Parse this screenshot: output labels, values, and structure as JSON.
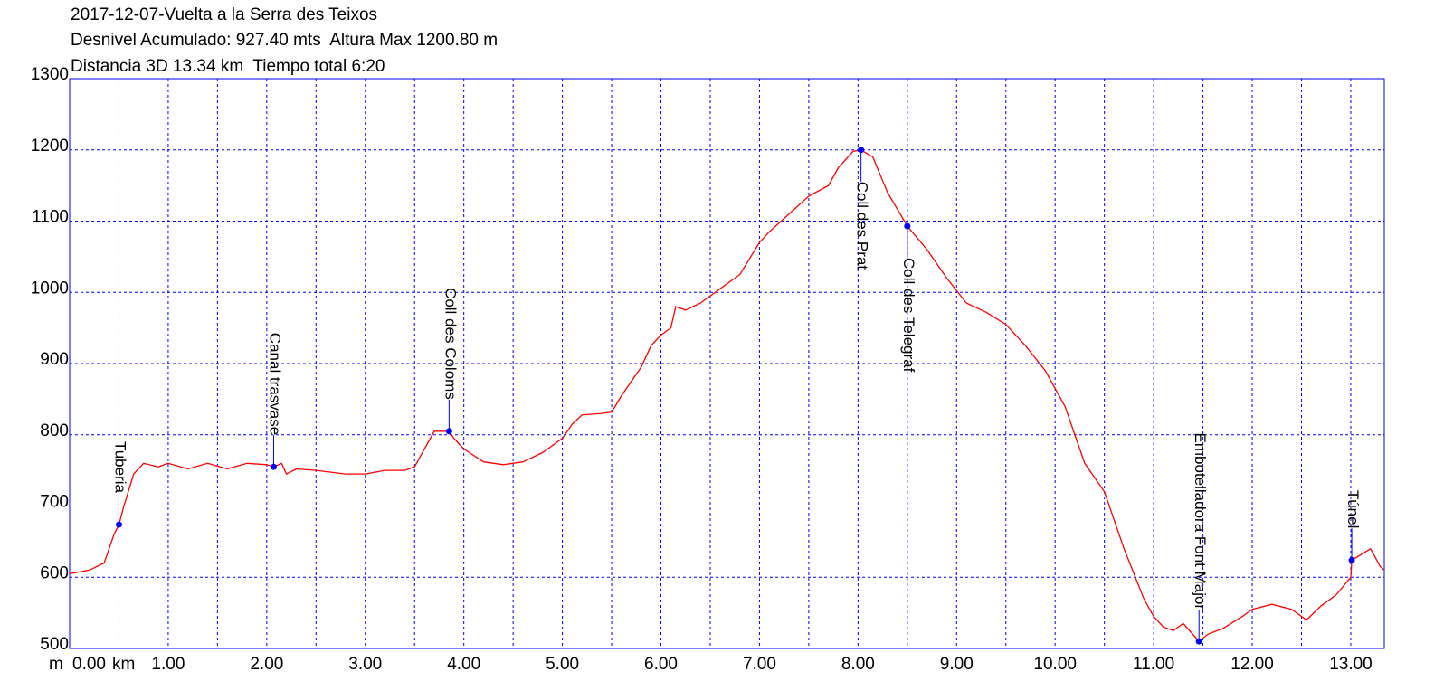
{
  "chart_data": {
    "type": "line",
    "title_lines": [
      "2017-12-07-Vuelta a la Serra des Teixos",
      "Desnivel Acumulado: 927.40 mts  Altura Max 1200.80 m",
      "Distancia 3D 13.34 km  Tiempo total 6:20"
    ],
    "y_unit": "m",
    "x_unit": "km",
    "color": "#ff0000",
    "grid_color": "#0000ff",
    "xlim": [
      0,
      13.34
    ],
    "ylim": [
      500,
      1300
    ],
    "yticks": [
      500,
      600,
      700,
      800,
      900,
      1000,
      1100,
      1200,
      1300
    ],
    "xticks": [
      {
        "value": 0,
        "label": "0.00"
      },
      {
        "value": 1,
        "label": "1.00"
      },
      {
        "value": 2,
        "label": "2.00"
      },
      {
        "value": 3,
        "label": "3.00"
      },
      {
        "value": 4,
        "label": "4.00"
      },
      {
        "value": 5,
        "label": "5.00"
      },
      {
        "value": 6,
        "label": "6.00"
      },
      {
        "value": 7,
        "label": "7.00"
      },
      {
        "value": 8,
        "label": "8.00"
      },
      {
        "value": 9,
        "label": "9.00"
      },
      {
        "value": 10,
        "label": "10.00"
      },
      {
        "value": 11,
        "label": "11.00"
      },
      {
        "value": 12,
        "label": "12.00"
      },
      {
        "value": 13,
        "label": "13.00"
      }
    ],
    "xgrid": [
      0.5,
      1,
      1.5,
      2,
      2.5,
      3,
      3.5,
      4,
      4.5,
      5,
      5.5,
      6,
      6.5,
      7,
      7.5,
      8,
      8.5,
      9,
      9.5,
      10,
      10.5,
      11,
      11.5,
      12,
      12.5,
      13
    ],
    "grid": true,
    "x": [
      0,
      0.2,
      0.35,
      0.45,
      0.5,
      0.55,
      0.65,
      0.75,
      0.9,
      1.0,
      1.2,
      1.4,
      1.6,
      1.8,
      2.0,
      2.07,
      2.15,
      2.2,
      2.3,
      2.5,
      2.8,
      3.0,
      3.2,
      3.4,
      3.5,
      3.6,
      3.7,
      3.85,
      3.9,
      4.0,
      4.2,
      4.4,
      4.6,
      4.8,
      5.0,
      5.1,
      5.2,
      5.4,
      5.5,
      5.6,
      5.8,
      5.9,
      6.0,
      6.1,
      6.15,
      6.25,
      6.4,
      6.6,
      6.8,
      7.0,
      7.1,
      7.3,
      7.5,
      7.7,
      7.8,
      7.95,
      8.03,
      8.15,
      8.3,
      8.5,
      8.7,
      8.9,
      9.1,
      9.3,
      9.5,
      9.7,
      9.9,
      10.1,
      10.3,
      10.5,
      10.7,
      10.9,
      11.0,
      11.1,
      11.2,
      11.3,
      11.46,
      11.55,
      11.7,
      11.9,
      12.0,
      12.2,
      12.4,
      12.55,
      12.7,
      12.85,
      13.0,
      13.01,
      13.2,
      13.3,
      13.34
    ],
    "values": [
      605,
      610,
      620,
      660,
      674,
      700,
      745,
      760,
      755,
      760,
      752,
      760,
      752,
      760,
      758,
      755,
      760,
      745,
      752,
      750,
      745,
      745,
      750,
      750,
      755,
      780,
      805,
      805,
      795,
      780,
      762,
      758,
      762,
      775,
      795,
      815,
      828,
      830,
      832,
      855,
      895,
      925,
      940,
      950,
      980,
      975,
      985,
      1005,
      1025,
      1070,
      1085,
      1110,
      1135,
      1150,
      1175,
      1198,
      1200,
      1190,
      1140,
      1093,
      1060,
      1020,
      985,
      972,
      955,
      925,
      890,
      840,
      760,
      720,
      640,
      570,
      545,
      530,
      525,
      535,
      510,
      520,
      528,
      545,
      555,
      562,
      555,
      540,
      560,
      575,
      600,
      624,
      640,
      615,
      610
    ],
    "waypoints": [
      {
        "label": "Tuberia",
        "x": 0.5,
        "y": 674,
        "position": "above"
      },
      {
        "label": "Canal trasvase",
        "x": 2.07,
        "y": 755,
        "position": "above"
      },
      {
        "label": "Coll des Coloms",
        "x": 3.85,
        "y": 805,
        "position": "above"
      },
      {
        "label": "Coll des Prat",
        "x": 8.03,
        "y": 1200,
        "position": "below"
      },
      {
        "label": "Coll des Telegraf",
        "x": 8.5,
        "y": 1093,
        "position": "below"
      },
      {
        "label": "Embotelladora Font Major",
        "x": 11.46,
        "y": 510,
        "position": "above"
      },
      {
        "label": "Túnel",
        "x": 13.01,
        "y": 624,
        "position": "above"
      }
    ],
    "waypoint_color": "#0000ff"
  }
}
